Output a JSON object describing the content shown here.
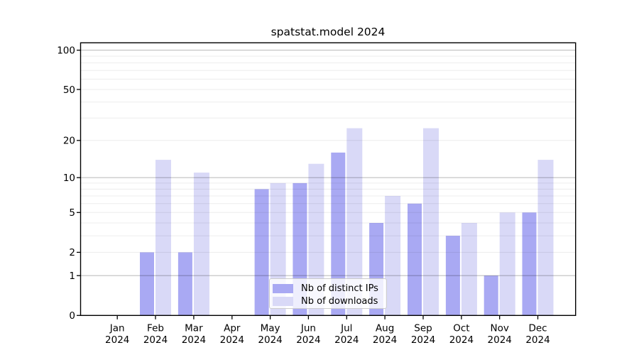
{
  "title": "spatstat.model 2024",
  "legend": {
    "items": [
      {
        "label": "Nb of distinct IPs",
        "color": "#a9a9f3"
      },
      {
        "label": "Nb of downloads",
        "color": "#d9d9f7"
      }
    ]
  },
  "chart_data": {
    "type": "bar",
    "title": "spatstat.model 2024",
    "categories": [
      "Jan 2024",
      "Feb 2024",
      "Mar 2024",
      "Apr 2024",
      "May 2024",
      "Jun 2024",
      "Jul 2024",
      "Aug 2024",
      "Sep 2024",
      "Oct 2024",
      "Nov 2024",
      "Dec 2024"
    ],
    "months": [
      "Jan",
      "Feb",
      "Mar",
      "Apr",
      "May",
      "Jun",
      "Jul",
      "Aug",
      "Sep",
      "Oct",
      "Nov",
      "Dec"
    ],
    "year": "2024",
    "series": [
      {
        "name": "Nb of distinct IPs",
        "color": "#a9a9f3",
        "values": [
          0,
          2,
          2,
          0,
          8,
          9,
          16,
          4,
          6,
          3,
          1,
          5
        ]
      },
      {
        "name": "Nb of downloads",
        "color": "#d9d9f7",
        "values": [
          0,
          14,
          11,
          0,
          9,
          13,
          25,
          7,
          25,
          4,
          5,
          14
        ]
      }
    ],
    "xlabel": "",
    "ylabel": "",
    "y_scale": "log1p",
    "ylim": [
      0,
      115
    ],
    "y_tick_labels": [
      "0",
      "1",
      "2",
      "5",
      "10",
      "20",
      "50",
      "100"
    ],
    "y_ticks": [
      0,
      1,
      2,
      5,
      10,
      20,
      50,
      100
    ],
    "y_major_gridlines": [
      1,
      10,
      100
    ],
    "y_minor_gridlines": [
      2,
      3,
      4,
      5,
      6,
      7,
      8,
      9,
      20,
      30,
      40,
      50,
      60,
      70,
      80,
      90
    ],
    "grid": "on",
    "legend_position": "inside-bottom-center",
    "colors": {
      "frame": "#000000",
      "major_grid": "#c2c2c2",
      "minor_grid": "#ebebeb",
      "tick_text": "#000000"
    }
  }
}
